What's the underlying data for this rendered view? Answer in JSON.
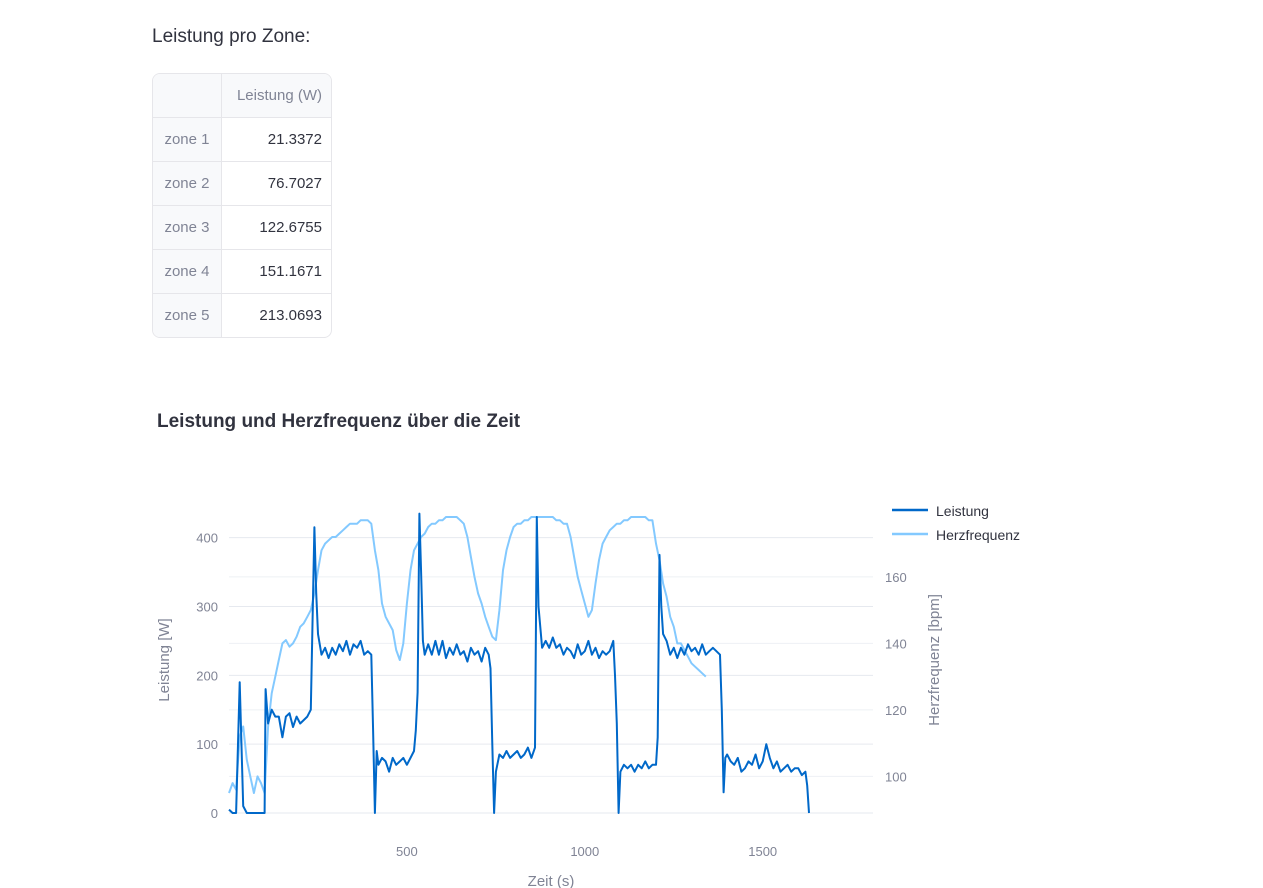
{
  "zone_section": {
    "heading": "Leistung pro Zone:",
    "table": {
      "column_header": "Leistung (W)",
      "rows": [
        {
          "label": "zone 1",
          "value": "21.3372"
        },
        {
          "label": "zone 2",
          "value": "76.7027"
        },
        {
          "label": "zone 3",
          "value": "122.6755"
        },
        {
          "label": "zone 4",
          "value": "151.1671"
        },
        {
          "label": "zone 5",
          "value": "213.0693"
        }
      ]
    }
  },
  "chart_data": {
    "type": "line",
    "title": "Leistung und Herzfrequenz über die Zeit",
    "xlabel": "Zeit (s)",
    "ylabel": "Leistung [W]",
    "y2label": "Herzfrequenz [bpm]",
    "xlim": [
      0,
      1810
    ],
    "ylim": [
      0,
      430
    ],
    "y2lim": [
      89,
      178
    ],
    "xticks": [
      500,
      1000,
      1500
    ],
    "yticks": [
      0,
      100,
      200,
      300,
      400
    ],
    "y2ticks": [
      100,
      120,
      140,
      160
    ],
    "grid": true,
    "legend": "top-right",
    "colors": {
      "Leistung": "#0068c9",
      "Herzfrequenz": "#83c9ff"
    },
    "series": [
      {
        "name": "Leistung",
        "axis": "left",
        "points": [
          [
            0,
            5
          ],
          [
            10,
            0
          ],
          [
            20,
            0
          ],
          [
            30,
            190
          ],
          [
            40,
            10
          ],
          [
            50,
            0
          ],
          [
            60,
            0
          ],
          [
            70,
            0
          ],
          [
            90,
            0
          ],
          [
            100,
            0
          ],
          [
            103,
            180
          ],
          [
            110,
            130
          ],
          [
            120,
            150
          ],
          [
            130,
            140
          ],
          [
            140,
            140
          ],
          [
            150,
            110
          ],
          [
            160,
            140
          ],
          [
            170,
            145
          ],
          [
            180,
            125
          ],
          [
            190,
            140
          ],
          [
            200,
            130
          ],
          [
            210,
            135
          ],
          [
            220,
            140
          ],
          [
            230,
            150
          ],
          [
            240,
            415
          ],
          [
            245,
            320
          ],
          [
            250,
            260
          ],
          [
            260,
            230
          ],
          [
            270,
            240
          ],
          [
            280,
            225
          ],
          [
            290,
            240
          ],
          [
            300,
            230
          ],
          [
            310,
            245
          ],
          [
            320,
            235
          ],
          [
            330,
            250
          ],
          [
            340,
            230
          ],
          [
            350,
            245
          ],
          [
            360,
            240
          ],
          [
            370,
            250
          ],
          [
            380,
            230
          ],
          [
            390,
            235
          ],
          [
            400,
            230
          ],
          [
            405,
            120
          ],
          [
            410,
            0
          ],
          [
            415,
            90
          ],
          [
            420,
            70
          ],
          [
            430,
            80
          ],
          [
            440,
            75
          ],
          [
            450,
            60
          ],
          [
            460,
            80
          ],
          [
            470,
            70
          ],
          [
            480,
            75
          ],
          [
            490,
            80
          ],
          [
            500,
            70
          ],
          [
            510,
            80
          ],
          [
            520,
            90
          ],
          [
            525,
            120
          ],
          [
            530,
            175
          ],
          [
            535,
            435
          ],
          [
            540,
            350
          ],
          [
            545,
            250
          ],
          [
            550,
            230
          ],
          [
            560,
            245
          ],
          [
            570,
            230
          ],
          [
            580,
            250
          ],
          [
            590,
            230
          ],
          [
            600,
            250
          ],
          [
            610,
            225
          ],
          [
            620,
            240
          ],
          [
            630,
            230
          ],
          [
            640,
            245
          ],
          [
            650,
            230
          ],
          [
            660,
            235
          ],
          [
            670,
            220
          ],
          [
            680,
            240
          ],
          [
            690,
            230
          ],
          [
            700,
            235
          ],
          [
            710,
            220
          ],
          [
            720,
            240
          ],
          [
            730,
            230
          ],
          [
            735,
            210
          ],
          [
            740,
            100
          ],
          [
            745,
            0
          ],
          [
            750,
            60
          ],
          [
            760,
            85
          ],
          [
            770,
            80
          ],
          [
            780,
            90
          ],
          [
            790,
            80
          ],
          [
            800,
            85
          ],
          [
            810,
            90
          ],
          [
            820,
            80
          ],
          [
            830,
            85
          ],
          [
            840,
            95
          ],
          [
            850,
            80
          ],
          [
            860,
            95
          ],
          [
            865,
            430
          ],
          [
            870,
            300
          ],
          [
            880,
            240
          ],
          [
            890,
            250
          ],
          [
            900,
            240
          ],
          [
            910,
            255
          ],
          [
            920,
            240
          ],
          [
            930,
            245
          ],
          [
            940,
            230
          ],
          [
            950,
            240
          ],
          [
            960,
            235
          ],
          [
            970,
            225
          ],
          [
            980,
            245
          ],
          [
            990,
            230
          ],
          [
            1000,
            235
          ],
          [
            1010,
            250
          ],
          [
            1020,
            230
          ],
          [
            1030,
            240
          ],
          [
            1040,
            225
          ],
          [
            1050,
            235
          ],
          [
            1060,
            230
          ],
          [
            1070,
            235
          ],
          [
            1080,
            250
          ],
          [
            1085,
            200
          ],
          [
            1090,
            130
          ],
          [
            1095,
            0
          ],
          [
            1100,
            60
          ],
          [
            1110,
            70
          ],
          [
            1120,
            65
          ],
          [
            1130,
            70
          ],
          [
            1140,
            60
          ],
          [
            1150,
            70
          ],
          [
            1160,
            65
          ],
          [
            1170,
            75
          ],
          [
            1180,
            65
          ],
          [
            1190,
            70
          ],
          [
            1200,
            70
          ],
          [
            1205,
            110
          ],
          [
            1210,
            375
          ],
          [
            1215,
            300
          ],
          [
            1220,
            260
          ],
          [
            1230,
            250
          ],
          [
            1240,
            230
          ],
          [
            1250,
            240
          ],
          [
            1260,
            225
          ],
          [
            1270,
            240
          ],
          [
            1280,
            230
          ],
          [
            1290,
            245
          ],
          [
            1300,
            235
          ],
          [
            1310,
            240
          ],
          [
            1320,
            230
          ],
          [
            1330,
            245
          ],
          [
            1340,
            230
          ],
          [
            1350,
            235
          ],
          [
            1360,
            240
          ],
          [
            1370,
            235
          ],
          [
            1380,
            230
          ],
          [
            1385,
            150
          ],
          [
            1390,
            30
          ],
          [
            1395,
            80
          ],
          [
            1400,
            85
          ],
          [
            1410,
            75
          ],
          [
            1420,
            70
          ],
          [
            1430,
            80
          ],
          [
            1440,
            60
          ],
          [
            1450,
            65
          ],
          [
            1460,
            75
          ],
          [
            1470,
            70
          ],
          [
            1480,
            85
          ],
          [
            1490,
            65
          ],
          [
            1500,
            75
          ],
          [
            1510,
            100
          ],
          [
            1520,
            80
          ],
          [
            1530,
            65
          ],
          [
            1540,
            75
          ],
          [
            1550,
            60
          ],
          [
            1560,
            65
          ],
          [
            1570,
            70
          ],
          [
            1580,
            60
          ],
          [
            1590,
            65
          ],
          [
            1600,
            65
          ],
          [
            1610,
            55
          ],
          [
            1620,
            60
          ],
          [
            1625,
            40
          ],
          [
            1630,
            0
          ]
        ]
      },
      {
        "name": "Herzfrequenz",
        "axis": "right",
        "points": [
          [
            0,
            95
          ],
          [
            10,
            98
          ],
          [
            20,
            96
          ],
          [
            30,
            112
          ],
          [
            40,
            115
          ],
          [
            50,
            105
          ],
          [
            60,
            100
          ],
          [
            70,
            95
          ],
          [
            80,
            100
          ],
          [
            90,
            98
          ],
          [
            100,
            95
          ],
          [
            110,
            115
          ],
          [
            120,
            125
          ],
          [
            130,
            130
          ],
          [
            140,
            135
          ],
          [
            150,
            140
          ],
          [
            160,
            141
          ],
          [
            170,
            139
          ],
          [
            180,
            140
          ],
          [
            190,
            142
          ],
          [
            200,
            145
          ],
          [
            210,
            146
          ],
          [
            220,
            148
          ],
          [
            230,
            150
          ],
          [
            240,
            155
          ],
          [
            250,
            162
          ],
          [
            260,
            168
          ],
          [
            270,
            170
          ],
          [
            280,
            171
          ],
          [
            290,
            172
          ],
          [
            300,
            172
          ],
          [
            310,
            173
          ],
          [
            320,
            174
          ],
          [
            330,
            175
          ],
          [
            340,
            176
          ],
          [
            350,
            176
          ],
          [
            360,
            176
          ],
          [
            370,
            177
          ],
          [
            380,
            177
          ],
          [
            390,
            177
          ],
          [
            400,
            176
          ],
          [
            410,
            168
          ],
          [
            420,
            162
          ],
          [
            430,
            152
          ],
          [
            440,
            148
          ],
          [
            450,
            146
          ],
          [
            460,
            144
          ],
          [
            470,
            138
          ],
          [
            480,
            135
          ],
          [
            490,
            140
          ],
          [
            500,
            152
          ],
          [
            510,
            162
          ],
          [
            520,
            168
          ],
          [
            530,
            170
          ],
          [
            540,
            172
          ],
          [
            550,
            173
          ],
          [
            560,
            175
          ],
          [
            570,
            176
          ],
          [
            580,
            176
          ],
          [
            590,
            177
          ],
          [
            600,
            177
          ],
          [
            610,
            178
          ],
          [
            620,
            178
          ],
          [
            630,
            178
          ],
          [
            640,
            178
          ],
          [
            650,
            177
          ],
          [
            660,
            176
          ],
          [
            670,
            172
          ],
          [
            680,
            166
          ],
          [
            690,
            160
          ],
          [
            700,
            155
          ],
          [
            710,
            152
          ],
          [
            720,
            148
          ],
          [
            730,
            145
          ],
          [
            740,
            142
          ],
          [
            750,
            141
          ],
          [
            760,
            150
          ],
          [
            770,
            162
          ],
          [
            780,
            168
          ],
          [
            790,
            172
          ],
          [
            800,
            175
          ],
          [
            810,
            176
          ],
          [
            820,
            176
          ],
          [
            830,
            177
          ],
          [
            840,
            177
          ],
          [
            850,
            178
          ],
          [
            860,
            178
          ],
          [
            870,
            178
          ],
          [
            880,
            178
          ],
          [
            890,
            178
          ],
          [
            900,
            178
          ],
          [
            910,
            178
          ],
          [
            920,
            177
          ],
          [
            930,
            177
          ],
          [
            940,
            176
          ],
          [
            950,
            176
          ],
          [
            960,
            172
          ],
          [
            970,
            166
          ],
          [
            980,
            160
          ],
          [
            990,
            156
          ],
          [
            1000,
            152
          ],
          [
            1010,
            148
          ],
          [
            1020,
            150
          ],
          [
            1030,
            158
          ],
          [
            1040,
            165
          ],
          [
            1050,
            170
          ],
          [
            1060,
            172
          ],
          [
            1070,
            174
          ],
          [
            1080,
            175
          ],
          [
            1090,
            176
          ],
          [
            1100,
            176
          ],
          [
            1110,
            177
          ],
          [
            1120,
            177
          ],
          [
            1130,
            178
          ],
          [
            1140,
            178
          ],
          [
            1150,
            178
          ],
          [
            1160,
            178
          ],
          [
            1170,
            178
          ],
          [
            1180,
            177
          ],
          [
            1190,
            177
          ],
          [
            1200,
            170
          ],
          [
            1210,
            165
          ],
          [
            1220,
            158
          ],
          [
            1230,
            154
          ],
          [
            1240,
            148
          ],
          [
            1250,
            145
          ],
          [
            1260,
            140
          ],
          [
            1270,
            140
          ],
          [
            1280,
            138
          ],
          [
            1290,
            136
          ],
          [
            1300,
            134
          ],
          [
            1310,
            133
          ],
          [
            1320,
            132
          ],
          [
            1330,
            131
          ],
          [
            1340,
            130
          ]
        ]
      }
    ]
  }
}
